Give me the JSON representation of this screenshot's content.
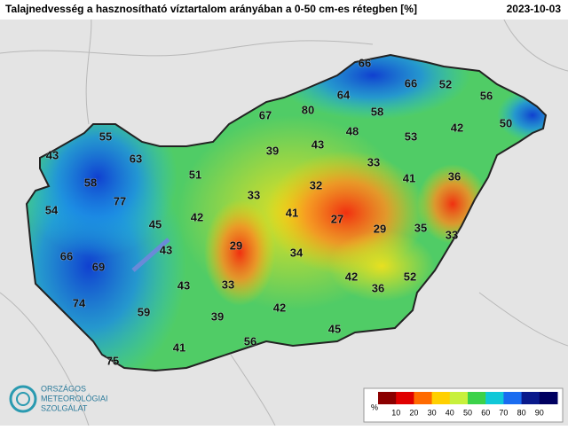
{
  "header": {
    "title": "Talajnedvesség a hasznosítható víztartalom arányában a 0-50 cm-es rétegben [%]",
    "date": "2023-10-03"
  },
  "stations": [
    66,
    66,
    52,
    56,
    64,
    80,
    67,
    58,
    42,
    50,
    55,
    48,
    53,
    39,
    43,
    43,
    63,
    33,
    51,
    41,
    36,
    58,
    32,
    77,
    33,
    54,
    42,
    41,
    27,
    45,
    29,
    35,
    33,
    43,
    29,
    34,
    66,
    69,
    42,
    52,
    43,
    33,
    36,
    74,
    42,
    59,
    39,
    45,
    56,
    41,
    75
  ],
  "legend": {
    "unit": "%",
    "ticks": [
      10,
      20,
      30,
      40,
      50,
      60,
      70,
      80,
      90
    ],
    "colors": [
      "#8b0000",
      "#e00000",
      "#ff6a00",
      "#ffd000",
      "#c8f03c",
      "#3cd24a",
      "#10c8d8",
      "#1a6cf0",
      "#0a1a8c",
      "#000060"
    ]
  },
  "logo": {
    "lines": [
      "ORSZÁGOS",
      "METEOROLÓGIAI",
      "SZOLGÁLAT"
    ]
  }
}
